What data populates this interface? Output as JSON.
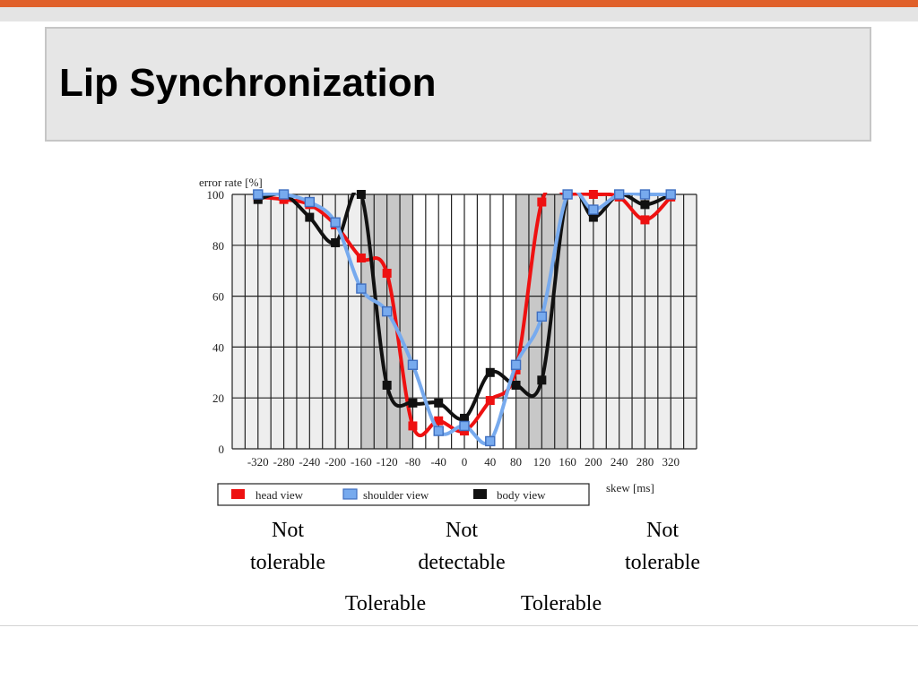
{
  "slide": {
    "title": "Lip Synchronization"
  },
  "chart_data": {
    "type": "line",
    "ylabel": "error rate [%]",
    "xlabel": "skew [ms]",
    "ylim": [
      0,
      100
    ],
    "xlim": [
      -360,
      360
    ],
    "y_ticks": [
      0,
      20,
      40,
      60,
      80,
      100
    ],
    "x_ticks": [
      -320,
      -280,
      -240,
      -200,
      -160,
      -120,
      -80,
      -40,
      0,
      40,
      80,
      120,
      160,
      200,
      240,
      280,
      320
    ],
    "x_tick_labels": [
      "-320",
      "-280",
      "-240",
      "-200",
      "-160",
      "-120",
      "-80",
      "-40",
      "0",
      "40",
      "80",
      "120",
      "160",
      "200",
      "240",
      "280",
      "320"
    ],
    "y_tick_labels": [
      "0",
      "20",
      "40",
      "60",
      "80",
      "100"
    ],
    "grid": true,
    "legend_position": "bottom",
    "shaded_regions": [
      {
        "x0": -360,
        "x1": -160,
        "color": "#eeeeee"
      },
      {
        "x0": -160,
        "x1": -80,
        "color": "#c8c8c8"
      },
      {
        "x0": 80,
        "x1": 160,
        "color": "#c8c8c8"
      },
      {
        "x0": 160,
        "x1": 360,
        "color": "#eeeeee"
      }
    ],
    "series": [
      {
        "name": "head view",
        "color": "#ee1111",
        "marker": "square-filled",
        "x": [
          -320,
          -280,
          -240,
          -200,
          -160,
          -120,
          -80,
          -40,
          0,
          40,
          80,
          120,
          160,
          200,
          240,
          280,
          320
        ],
        "y": [
          99,
          98,
          96,
          88,
          75,
          69,
          9,
          11,
          7,
          19,
          31,
          97,
          100,
          100,
          99,
          90,
          99
        ]
      },
      {
        "name": "shoulder view",
        "color": "#77aaee",
        "marker": "square-open",
        "x": [
          -320,
          -280,
          -240,
          -200,
          -160,
          -120,
          -80,
          -40,
          0,
          40,
          80,
          120,
          160,
          200,
          240,
          280,
          320
        ],
        "y": [
          100,
          100,
          97,
          89,
          63,
          54,
          33,
          7,
          9,
          3,
          33,
          52,
          100,
          94,
          100,
          100,
          100
        ]
      },
      {
        "name": "body view",
        "color": "#111111",
        "marker": "square-filled",
        "x": [
          -320,
          -280,
          -240,
          -200,
          -160,
          -120,
          -80,
          -40,
          0,
          40,
          80,
          120,
          160,
          200,
          240,
          280,
          320
        ],
        "y": [
          98,
          100,
          91,
          81,
          100,
          25,
          18,
          18,
          12,
          30,
          25,
          27,
          100,
          91,
          100,
          96,
          100
        ]
      }
    ]
  },
  "regions": {
    "not_tolerable_left_1": "Not",
    "not_tolerable_left_2": "tolerable",
    "not_detectable_1": "Not",
    "not_detectable_2": "detectable",
    "not_tolerable_right_1": "Not",
    "not_tolerable_right_2": "tolerable",
    "tolerable_left": "Tolerable",
    "tolerable_right": "Tolerable"
  }
}
